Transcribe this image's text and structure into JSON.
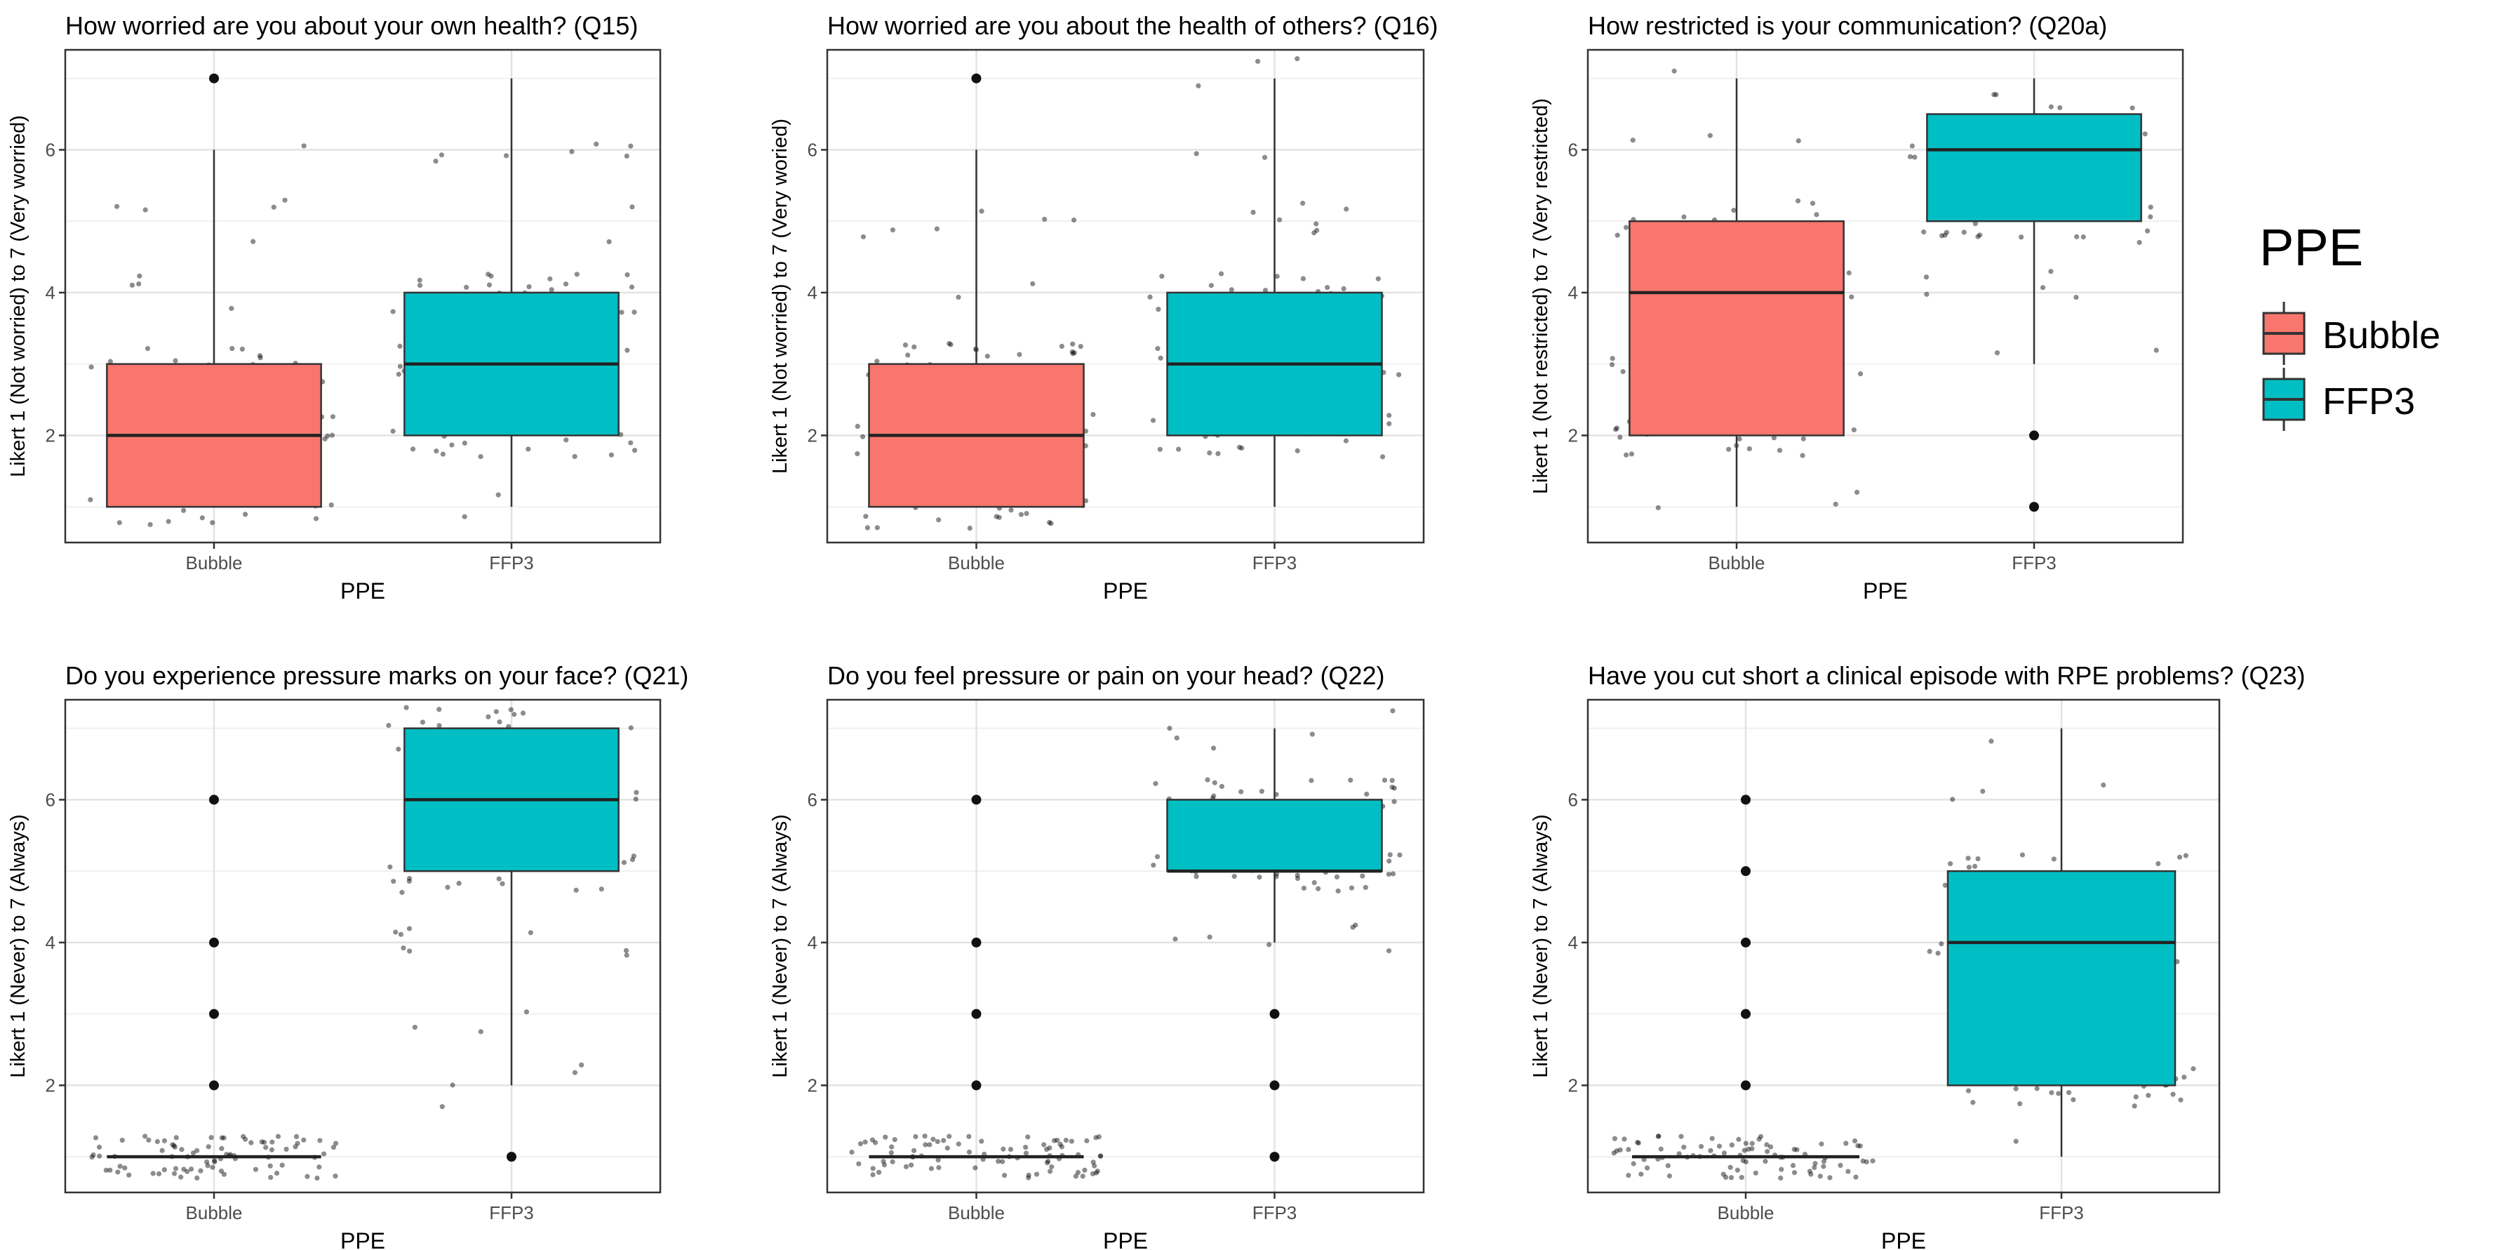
{
  "legend": {
    "title": "PPE",
    "items": [
      {
        "label": "Bubble",
        "color": "#F8766D"
      },
      {
        "label": "FFP3",
        "color": "#00BFC4"
      }
    ]
  },
  "chart_data": [
    {
      "type": "boxplot",
      "title": "How worried are you about your own health? (Q15)",
      "xlabel": "PPE",
      "ylabel": "Likert 1 (Not worried) to 7 (Very worried)",
      "categories": [
        "Bubble",
        "FFP3"
      ],
      "yticks": [
        2,
        4,
        6
      ],
      "ylim": [
        0.5,
        7.4
      ],
      "grid": true,
      "boxes": [
        {
          "category": "Bubble",
          "min": 1,
          "q1": 1,
          "median": 2,
          "q3": 3,
          "max": 6,
          "outliers": [
            7
          ]
        },
        {
          "category": "FFP3",
          "min": 1,
          "q1": 2,
          "median": 3,
          "q3": 4,
          "max": 7,
          "outliers": []
        }
      ]
    },
    {
      "type": "boxplot",
      "title": "How worried are you about the health of others? (Q16)",
      "xlabel": "PPE",
      "ylabel": "Likert 1 (Not worried) to 7 (Very woried)",
      "categories": [
        "Bubble",
        "FFP3"
      ],
      "yticks": [
        2,
        4,
        6
      ],
      "ylim": [
        0.5,
        7.4
      ],
      "grid": true,
      "boxes": [
        {
          "category": "Bubble",
          "min": 1,
          "q1": 1,
          "median": 2,
          "q3": 3,
          "max": 6,
          "outliers": [
            7
          ]
        },
        {
          "category": "FFP3",
          "min": 1,
          "q1": 2,
          "median": 3,
          "q3": 4,
          "max": 7,
          "outliers": []
        }
      ]
    },
    {
      "type": "boxplot",
      "title": "How restricted is your communication? (Q20a)",
      "xlabel": "PPE",
      "ylabel": "Likert 1 (Not restricted) to 7 (Very restricted)",
      "categories": [
        "Bubble",
        "FFP3"
      ],
      "yticks": [
        2,
        4,
        6
      ],
      "ylim": [
        0.5,
        7.4
      ],
      "grid": true,
      "boxes": [
        {
          "category": "Bubble",
          "min": 1,
          "q1": 2,
          "median": 4,
          "q3": 5,
          "max": 7,
          "outliers": []
        },
        {
          "category": "FFP3",
          "min": 3,
          "q1": 5,
          "median": 6,
          "q3": 6.5,
          "max": 7,
          "outliers": [
            2,
            1
          ]
        }
      ]
    },
    {
      "type": "boxplot",
      "title": "Do you experience pressure marks on your face? (Q21)",
      "xlabel": "PPE",
      "ylabel": "Likert 1 (Never) to 7 (Always)",
      "categories": [
        "Bubble",
        "FFP3"
      ],
      "yticks": [
        2,
        4,
        6
      ],
      "ylim": [
        0.5,
        7.4
      ],
      "grid": true,
      "boxes": [
        {
          "category": "Bubble",
          "min": 1,
          "q1": 1,
          "median": 1,
          "q3": 1,
          "max": 1,
          "outliers": [
            2,
            3,
            4,
            6
          ]
        },
        {
          "category": "FFP3",
          "min": 2,
          "q1": 5,
          "median": 6,
          "q3": 7,
          "max": 7,
          "outliers": [
            1
          ]
        }
      ]
    },
    {
      "type": "boxplot",
      "title": "Do you feel pressure or pain on your head? (Q22)",
      "xlabel": "PPE",
      "ylabel": "Likert 1 (Never) to 7 (Always)",
      "categories": [
        "Bubble",
        "FFP3"
      ],
      "yticks": [
        2,
        4,
        6
      ],
      "ylim": [
        0.5,
        7.4
      ],
      "grid": true,
      "boxes": [
        {
          "category": "Bubble",
          "min": 1,
          "q1": 1,
          "median": 1,
          "q3": 1,
          "max": 1,
          "outliers": [
            2,
            3,
            4,
            6
          ]
        },
        {
          "category": "FFP3",
          "min": 4,
          "q1": 5,
          "median": 5,
          "q3": 6,
          "max": 7,
          "outliers": [
            3,
            2,
            1
          ]
        }
      ]
    },
    {
      "type": "boxplot",
      "title": "Have you cut short a clinical episode with RPE problems? (Q23)",
      "xlabel": "PPE",
      "ylabel": "Likert 1 (Never) to 7 (Always)",
      "categories": [
        "Bubble",
        "FFP3"
      ],
      "yticks": [
        2,
        4,
        6
      ],
      "ylim": [
        0.5,
        7.4
      ],
      "grid": true,
      "boxes": [
        {
          "category": "Bubble",
          "min": 1,
          "q1": 1,
          "median": 1,
          "q3": 1,
          "max": 1,
          "outliers": [
            2,
            3,
            4,
            5,
            6
          ]
        },
        {
          "category": "FFP3",
          "min": 1,
          "q1": 2,
          "median": 4,
          "q3": 5,
          "max": 7,
          "outliers": []
        }
      ]
    }
  ]
}
